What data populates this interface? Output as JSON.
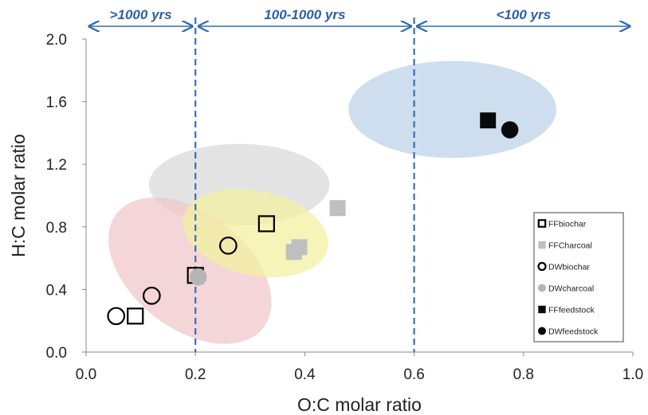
{
  "chart_data": {
    "type": "scatter",
    "xlabel": "O:C molar ratio",
    "ylabel": "H:C molar ratio",
    "xlim": [
      0.0,
      1.0
    ],
    "ylim": [
      0.0,
      2.0
    ],
    "x_ticks": [
      "0.0",
      "0.2",
      "0.4",
      "0.6",
      "0.8",
      "1.0"
    ],
    "y_ticks": [
      "0.0",
      "0.4",
      "0.8",
      "1.2",
      "1.6",
      "2.0"
    ],
    "grid": false,
    "legend_position": "bottom-right",
    "zones": [
      {
        "label": ">1000 yrs",
        "from": 0.0,
        "to": 0.2
      },
      {
        "label": "100-1000 yrs",
        "from": 0.2,
        "to": 0.6
      },
      {
        "label": "<100 yrs",
        "from": 0.6,
        "to": 1.0
      }
    ],
    "boundaries": [
      0.2,
      0.6
    ],
    "series": [
      {
        "name": "FFbiochar",
        "marker": "square-open",
        "color": "#000000",
        "points": [
          [
            0.09,
            0.23
          ],
          [
            0.2,
            0.49
          ],
          [
            0.33,
            0.82
          ]
        ]
      },
      {
        "name": "FFCharcoal",
        "marker": "square-filled",
        "color": "#bfbfbf",
        "points": [
          [
            0.38,
            0.64
          ],
          [
            0.39,
            0.67
          ],
          [
            0.46,
            0.92
          ]
        ]
      },
      {
        "name": "DWbiochar",
        "marker": "circle-open",
        "color": "#000000",
        "points": [
          [
            0.055,
            0.23
          ],
          [
            0.12,
            0.36
          ],
          [
            0.26,
            0.68
          ]
        ]
      },
      {
        "name": "DWcharcoal",
        "marker": "circle-filled",
        "color": "#b5b5b5",
        "points": [
          [
            0.205,
            0.48
          ]
        ]
      },
      {
        "name": "FFfeedstock",
        "marker": "square-filled",
        "color": "#0a0a0a",
        "points": [
          [
            0.735,
            1.48
          ]
        ]
      },
      {
        "name": "DWfeedstock",
        "marker": "circle-filled",
        "color": "#0a0a0a",
        "points": [
          [
            0.775,
            1.42
          ]
        ]
      }
    ],
    "regions": [
      {
        "color": "#bdd3ea",
        "cx": 0.67,
        "cy": 1.55,
        "rx": 0.19,
        "ry": 0.31,
        "angle": 0
      },
      {
        "color": "#d9d9d9",
        "cx": 0.28,
        "cy": 1.07,
        "rx": 0.165,
        "ry": 0.26,
        "angle": 0
      },
      {
        "color": "#f0c7cb",
        "cx": 0.19,
        "cy": 0.52,
        "rx": 0.17,
        "ry": 0.37,
        "angle": 38
      },
      {
        "color": "#f3f0a0",
        "cx": 0.31,
        "cy": 0.76,
        "rx": 0.135,
        "ry": 0.27,
        "angle": 12
      }
    ]
  }
}
